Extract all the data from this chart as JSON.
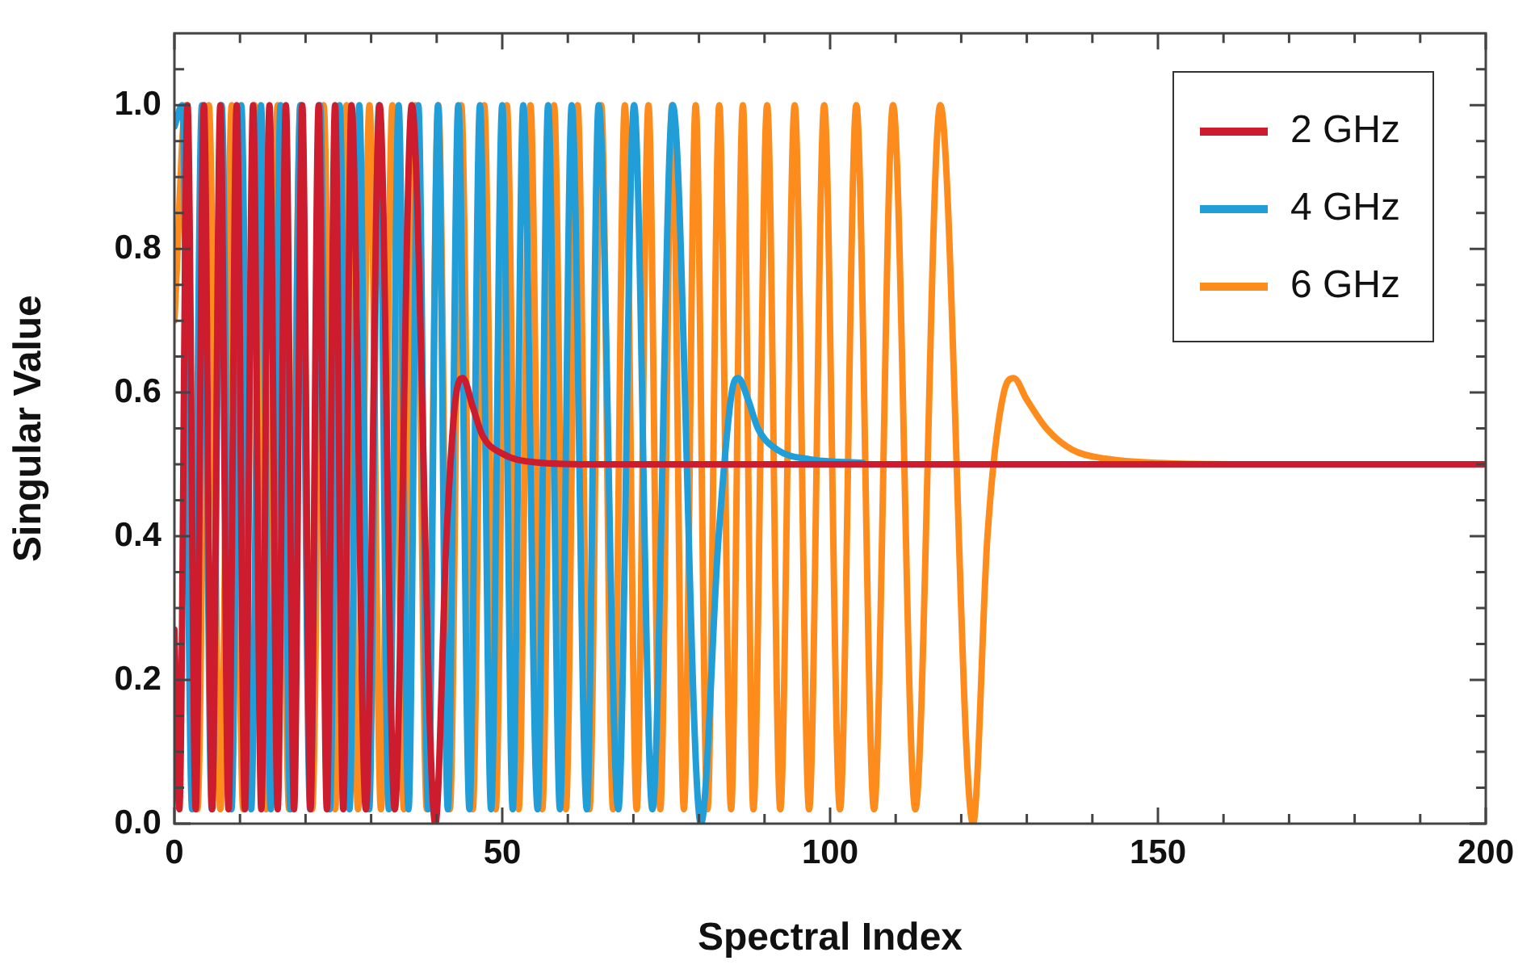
{
  "chart_data": {
    "type": "line",
    "xlabel": "Spectral Index",
    "ylabel": "Singular Value",
    "xlim": [
      0,
      200
    ],
    "xticks": [
      {
        "value": 0,
        "label": "0"
      },
      {
        "value": 10,
        "label": null
      },
      {
        "value": 20,
        "label": null
      },
      {
        "value": 30,
        "label": null
      },
      {
        "value": 40,
        "label": null
      },
      {
        "value": 50,
        "label": "50"
      },
      {
        "value": 60,
        "label": null
      },
      {
        "value": 70,
        "label": null
      },
      {
        "value": 80,
        "label": null
      },
      {
        "value": 90,
        "label": null
      },
      {
        "value": 100,
        "label": "100"
      },
      {
        "value": 110,
        "label": null
      },
      {
        "value": 120,
        "label": null
      },
      {
        "value": 130,
        "label": null
      },
      {
        "value": 140,
        "label": null
      },
      {
        "value": 150,
        "label": "150"
      },
      {
        "value": 160,
        "label": null
      },
      {
        "value": 170,
        "label": null
      },
      {
        "value": 180,
        "label": null
      },
      {
        "value": 190,
        "label": null
      },
      {
        "value": 200,
        "label": "200"
      }
    ],
    "ylim": [
      0,
      1.1
    ],
    "yticks": [
      {
        "value": 0,
        "label": "0.0"
      },
      {
        "value": 0.05,
        "label": null
      },
      {
        "value": 0.1,
        "label": null
      },
      {
        "value": 0.15,
        "label": null
      },
      {
        "value": 0.2,
        "label": "0.2"
      },
      {
        "value": 0.25,
        "label": null
      },
      {
        "value": 0.3,
        "label": null
      },
      {
        "value": 0.35,
        "label": null
      },
      {
        "value": 0.4,
        "label": "0.4"
      },
      {
        "value": 0.45,
        "label": null
      },
      {
        "value": 0.5,
        "label": null
      },
      {
        "value": 0.55,
        "label": null
      },
      {
        "value": 0.6,
        "label": "0.6"
      },
      {
        "value": 0.65,
        "label": null
      },
      {
        "value": 0.7,
        "label": null
      },
      {
        "value": 0.75,
        "label": null
      },
      {
        "value": 0.8,
        "label": "0.8"
      },
      {
        "value": 0.85,
        "label": null
      },
      {
        "value": 0.9,
        "label": null
      },
      {
        "value": 0.95,
        "label": null
      },
      {
        "value": 1.0,
        "label": "1.0"
      },
      {
        "value": 1.05,
        "label": null
      }
    ],
    "grid": false,
    "legend": "top right",
    "marker": "none",
    "line_style": "solid",
    "series": [
      {
        "name": "2 GHz",
        "color": "#cc1c2e",
        "x": [
          0,
          0.75,
          2,
          3.25,
          4.5,
          5.75,
          7,
          8.25,
          9.5,
          10.75,
          12,
          13.25,
          14.5,
          15.75,
          17,
          18.25,
          19.5,
          20.75,
          22,
          23.25,
          24.5,
          25.75,
          27,
          29.2,
          31.3,
          33.6,
          36.2,
          39.8,
          41.5,
          43,
          44,
          45.5,
          47,
          50,
          55,
          65,
          200
        ],
        "values": [
          0.27,
          0.02,
          1,
          0.02,
          1,
          0.02,
          1,
          0.02,
          1,
          0.02,
          1,
          0.02,
          1,
          0.02,
          1,
          0.02,
          1,
          0.02,
          1,
          0.02,
          1,
          0.02,
          1,
          0.02,
          1,
          0.02,
          1,
          0,
          0.4,
          0.6,
          0.62,
          0.58,
          0.54,
          0.515,
          0.503,
          0.5,
          0.5
        ]
      },
      {
        "name": "4 GHz",
        "color": "#219ed8",
        "x": [
          0,
          1.2,
          2.7,
          4.2,
          5.7,
          7.2,
          8.7,
          10.2,
          11.7,
          13.2,
          14.7,
          16.2,
          17.7,
          19.2,
          20.7,
          22.2,
          23.7,
          25.2,
          26.7,
          28.2,
          29.7,
          31.2,
          32.7,
          34.2,
          35.7,
          37.2,
          38.7,
          40.2,
          41.7,
          43.3,
          45,
          46.6,
          48.3,
          50,
          51.6,
          53.2,
          55.4,
          57,
          58.8,
          60.6,
          62.9,
          64.7,
          67.7,
          70.1,
          72.9,
          76,
          80.3,
          83,
          85,
          86,
          87.5,
          89,
          92,
          97,
          105
        ],
        "values": [
          0.97,
          1,
          0.02,
          1,
          0.02,
          1,
          0.02,
          1,
          0.02,
          1,
          0.02,
          1,
          0.02,
          1,
          0.02,
          1,
          0.02,
          1,
          0.02,
          1,
          0.02,
          1,
          0.02,
          1,
          0.02,
          1,
          0.02,
          1,
          0.02,
          1,
          0.02,
          1,
          0.02,
          1,
          0.02,
          1,
          0.02,
          1,
          0.02,
          1,
          0.02,
          1,
          0.02,
          1,
          0.02,
          1,
          0,
          0.4,
          0.6,
          0.62,
          0.59,
          0.55,
          0.52,
          0.507,
          0.502
        ]
      },
      {
        "name": "6 GHz",
        "color": "#fd8c1d",
        "x": [
          0,
          1.75,
          3.5,
          5.25,
          7,
          8.75,
          10.5,
          12.25,
          14,
          15.75,
          17.5,
          19.25,
          21,
          22.75,
          24.5,
          26.25,
          28,
          29.75,
          31.5,
          33.25,
          35,
          36.75,
          38.5,
          40.25,
          42,
          43.75,
          45.5,
          47.25,
          49,
          50.7,
          52.5,
          54.3,
          56.1,
          57.9,
          59.7,
          61.5,
          63.3,
          65.1,
          66.9,
          68.7,
          70.5,
          72.3,
          74.1,
          75.9,
          77.7,
          79.5,
          81.3,
          83.1,
          84.9,
          86.7,
          88.3,
          90.4,
          92.4,
          94.6,
          96.8,
          99.1,
          101.5,
          104,
          106.7,
          109.6,
          113,
          116.8,
          121.8,
          124,
          126.5,
          128,
          130,
          133,
          137,
          142,
          150,
          165,
          200
        ],
        "values": [
          0.7,
          1,
          0.02,
          1,
          0.02,
          1,
          0.02,
          1,
          0.02,
          1,
          0.02,
          1,
          0.02,
          1,
          0.02,
          1,
          0.02,
          1,
          0.02,
          1,
          0.02,
          1,
          0.02,
          1,
          0.02,
          1,
          0.02,
          1,
          0.02,
          1,
          0.02,
          1,
          0.02,
          1,
          0.02,
          1,
          0.02,
          1,
          0.02,
          1,
          0.02,
          1,
          0.02,
          1,
          0.02,
          1,
          0.02,
          1,
          0.02,
          1,
          0.02,
          1,
          0.02,
          1,
          0.02,
          1,
          0.02,
          1,
          0.02,
          1,
          0.02,
          1,
          0,
          0.4,
          0.6,
          0.62,
          0.59,
          0.55,
          0.52,
          0.508,
          0.502,
          0.5,
          0.5
        ]
      }
    ]
  }
}
